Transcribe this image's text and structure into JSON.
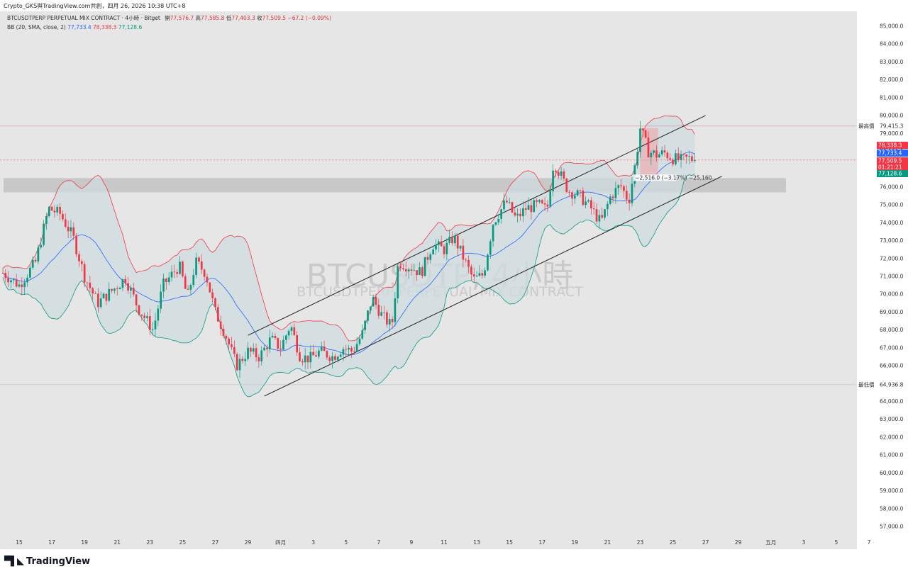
{
  "header": {
    "author_line": "Crypto_GKS與TradingView.com共創，四月 26, 2026 10:38 UTC+8",
    "symbol_line": "BTCUSDTPERP PERPETUAL MIX CONTRACT · 4小時 · Bitget",
    "open_label": "開",
    "open_value": "77,576.7",
    "high_label": "高",
    "high_value": "77,585.8",
    "low_label": "低",
    "low_value": "77,403.3",
    "close_label": "收",
    "close_value": "77,509.5",
    "change_value": "−67.2 (−0.09%)"
  },
  "indicator": {
    "label": "BB (20, SMA, close, 2)",
    "basis": "77,733.4",
    "upper": "78,338.3",
    "lower": "77,128.6",
    "basis_color": "#2962ff",
    "upper_color": "#f23645",
    "lower_color": "#089981"
  },
  "watermark": {
    "symbol": "BTCUSDTP, 4小時",
    "name": "BTCUSDTPERP PERPETUAL MIX CONTRACT"
  },
  "footer": {
    "brand": "TradingView"
  },
  "chart_data": {
    "type": "candlestick",
    "interval": "4小時",
    "symbol": "BTCUSDTPERP",
    "ylim": [
      56500,
      85500
    ],
    "y_ticks": [
      57000,
      58000,
      59000,
      60000,
      61000,
      62000,
      63000,
      64000,
      65000,
      66000,
      67000,
      68000,
      69000,
      70000,
      71000,
      72000,
      73000,
      74000,
      75000,
      76000,
      77000,
      78000,
      79000,
      80000,
      81000,
      82000,
      83000,
      84000,
      85000
    ],
    "y_tick_labels": [
      "57,000.0",
      "58,000.0",
      "59,000.0",
      "60,000.0",
      "61,000.0",
      "62,000.0",
      "63,000.0",
      "64,000.0",
      "65,000.0",
      "66,000.0",
      "67,000.0",
      "68,000.0",
      "69,000.0",
      "70,000.0",
      "71,000.0",
      "72,000.0",
      "73,000.0",
      "74,000.0",
      "75,000.0",
      "76,000.0",
      "77,000.0",
      "78,000.0",
      "79,000.0",
      "80,000.0",
      "81,000.0",
      "82,000.0",
      "83,000.0",
      "84,000.0",
      "85,000.0"
    ],
    "x_ticks": [
      {
        "day": 15,
        "label": "15"
      },
      {
        "day": 17,
        "label": "17"
      },
      {
        "day": 19,
        "label": "19"
      },
      {
        "day": 21,
        "label": "21"
      },
      {
        "day": 23,
        "label": "23"
      },
      {
        "day": 25,
        "label": "25"
      },
      {
        "day": 27,
        "label": "27"
      },
      {
        "day": 29,
        "label": "29"
      },
      {
        "day": 31,
        "label": "四月"
      },
      {
        "day": 33,
        "label": "3"
      },
      {
        "day": 35,
        "label": "5"
      },
      {
        "day": 37,
        "label": "7"
      },
      {
        "day": 39,
        "label": "9"
      },
      {
        "day": 41,
        "label": "11"
      },
      {
        "day": 43,
        "label": "13"
      },
      {
        "day": 45,
        "label": "15"
      },
      {
        "day": 47,
        "label": "17"
      },
      {
        "day": 49,
        "label": "19"
      },
      {
        "day": 51,
        "label": "21"
      },
      {
        "day": 53,
        "label": "23"
      },
      {
        "day": 55,
        "label": "25"
      },
      {
        "day": 57,
        "label": "27"
      },
      {
        "day": 59,
        "label": "29"
      },
      {
        "day": 61,
        "label": "五月"
      },
      {
        "day": 63,
        "label": "3"
      },
      {
        "day": 65,
        "label": "5"
      },
      {
        "day": 67,
        "label": "7"
      }
    ],
    "close_path": [
      [
        14.0,
        71200
      ],
      [
        15.0,
        70500
      ],
      [
        16.0,
        71800
      ],
      [
        16.8,
        74800
      ],
      [
        17.5,
        74500
      ],
      [
        18.3,
        73200
      ],
      [
        19.0,
        71000
      ],
      [
        19.8,
        69500
      ],
      [
        20.8,
        70300
      ],
      [
        21.5,
        70900
      ],
      [
        22.3,
        69200
      ],
      [
        23.2,
        68000
      ],
      [
        23.8,
        70500
      ],
      [
        24.8,
        71600
      ],
      [
        25.3,
        69800
      ],
      [
        25.8,
        71800
      ],
      [
        26.4,
        71200
      ],
      [
        27.0,
        69000
      ],
      [
        27.6,
        67800
      ],
      [
        28.3,
        66000
      ],
      [
        29.0,
        66800
      ],
      [
        29.7,
        66500
      ],
      [
        30.4,
        67500
      ],
      [
        31.0,
        67000
      ],
      [
        31.6,
        68300
      ],
      [
        32.2,
        66500
      ],
      [
        32.8,
        66400
      ],
      [
        33.4,
        66800
      ],
      [
        34.2,
        66500
      ],
      [
        34.8,
        67000
      ],
      [
        35.4,
        66800
      ],
      [
        36.0,
        67800
      ],
      [
        36.6,
        69800
      ],
      [
        37.2,
        68800
      ],
      [
        37.8,
        68200
      ],
      [
        38.2,
        71800
      ],
      [
        39.0,
        71500
      ],
      [
        39.6,
        71200
      ],
      [
        40.3,
        72800
      ],
      [
        41.0,
        72500
      ],
      [
        41.6,
        73200
      ],
      [
        42.2,
        72000
      ],
      [
        42.8,
        70800
      ],
      [
        43.4,
        71100
      ],
      [
        44.0,
        74000
      ],
      [
        44.8,
        75200
      ],
      [
        45.4,
        74200
      ],
      [
        46.0,
        74800
      ],
      [
        46.8,
        75000
      ],
      [
        47.3,
        74700
      ],
      [
        47.7,
        77400
      ],
      [
        48.0,
        76900
      ],
      [
        48.6,
        75800
      ],
      [
        49.3,
        75500
      ],
      [
        50.0,
        74800
      ],
      [
        50.6,
        74000
      ],
      [
        51.2,
        75500
      ],
      [
        51.8,
        76100
      ],
      [
        52.3,
        75200
      ],
      [
        52.7,
        77300
      ],
      [
        53.0,
        79300
      ],
      [
        53.5,
        78000
      ],
      [
        54.0,
        77800
      ],
      [
        54.5,
        77900
      ],
      [
        55.0,
        77600
      ],
      [
        55.5,
        77500
      ],
      [
        56.0,
        77600
      ],
      [
        56.4,
        77509.5
      ]
    ],
    "bollinger": {
      "period": 20,
      "type": "SMA",
      "source": "close",
      "stddev": 2,
      "upper_last": 78338.3,
      "basis_last": 77733.4,
      "lower_last": 77128.6
    },
    "channel": {
      "upper_line": [
        [
          29.0,
          67700
        ],
        [
          57.0,
          80000
        ]
      ],
      "lower_line": [
        [
          30.0,
          64300
        ],
        [
          58.0,
          76600
        ]
      ]
    },
    "zones": {
      "support_zone": [
        75700,
        76500
      ],
      "highlight_box": {
        "from_day": 53.0,
        "to_day": 54.1,
        "low": 76500,
        "high": 79300
      }
    },
    "measure": {
      "from_day": 52.6,
      "to_day": 55.2,
      "price": 76500,
      "label": "−2,516.0 (−3.17%) −25,160"
    },
    "price_lines": [
      {
        "label": "最高價",
        "value": "79,415.3",
        "price": 79415.3,
        "color": "#d89a9a"
      },
      {
        "label": "最低價",
        "value": "64,936.8",
        "price": 64936.8,
        "color": "#bbbbbb"
      },
      {
        "label": "",
        "value": "77,509.5",
        "price": 77509.5,
        "color": "#f23645"
      }
    ],
    "price_tags": [
      {
        "value": "78,338.3",
        "price": 78338.3,
        "color": "#f23645"
      },
      {
        "value": "77,733.4",
        "price": 77733.4,
        "color": "#2962ff"
      },
      {
        "value": "77,509.5",
        "price": 77509.5,
        "color": "#f23645"
      },
      {
        "value": "01:21:21",
        "price": 77260,
        "color": "#f23645"
      },
      {
        "value": "77,128.6",
        "price": 77128.6,
        "color": "#089981"
      }
    ],
    "colors": {
      "up": "#089981",
      "down": "#f23645",
      "band_fill": "#cfdcdf",
      "channel": "#222222",
      "support_zone": "#c4c4c4",
      "grid_bg": "#e6e6e6"
    }
  }
}
